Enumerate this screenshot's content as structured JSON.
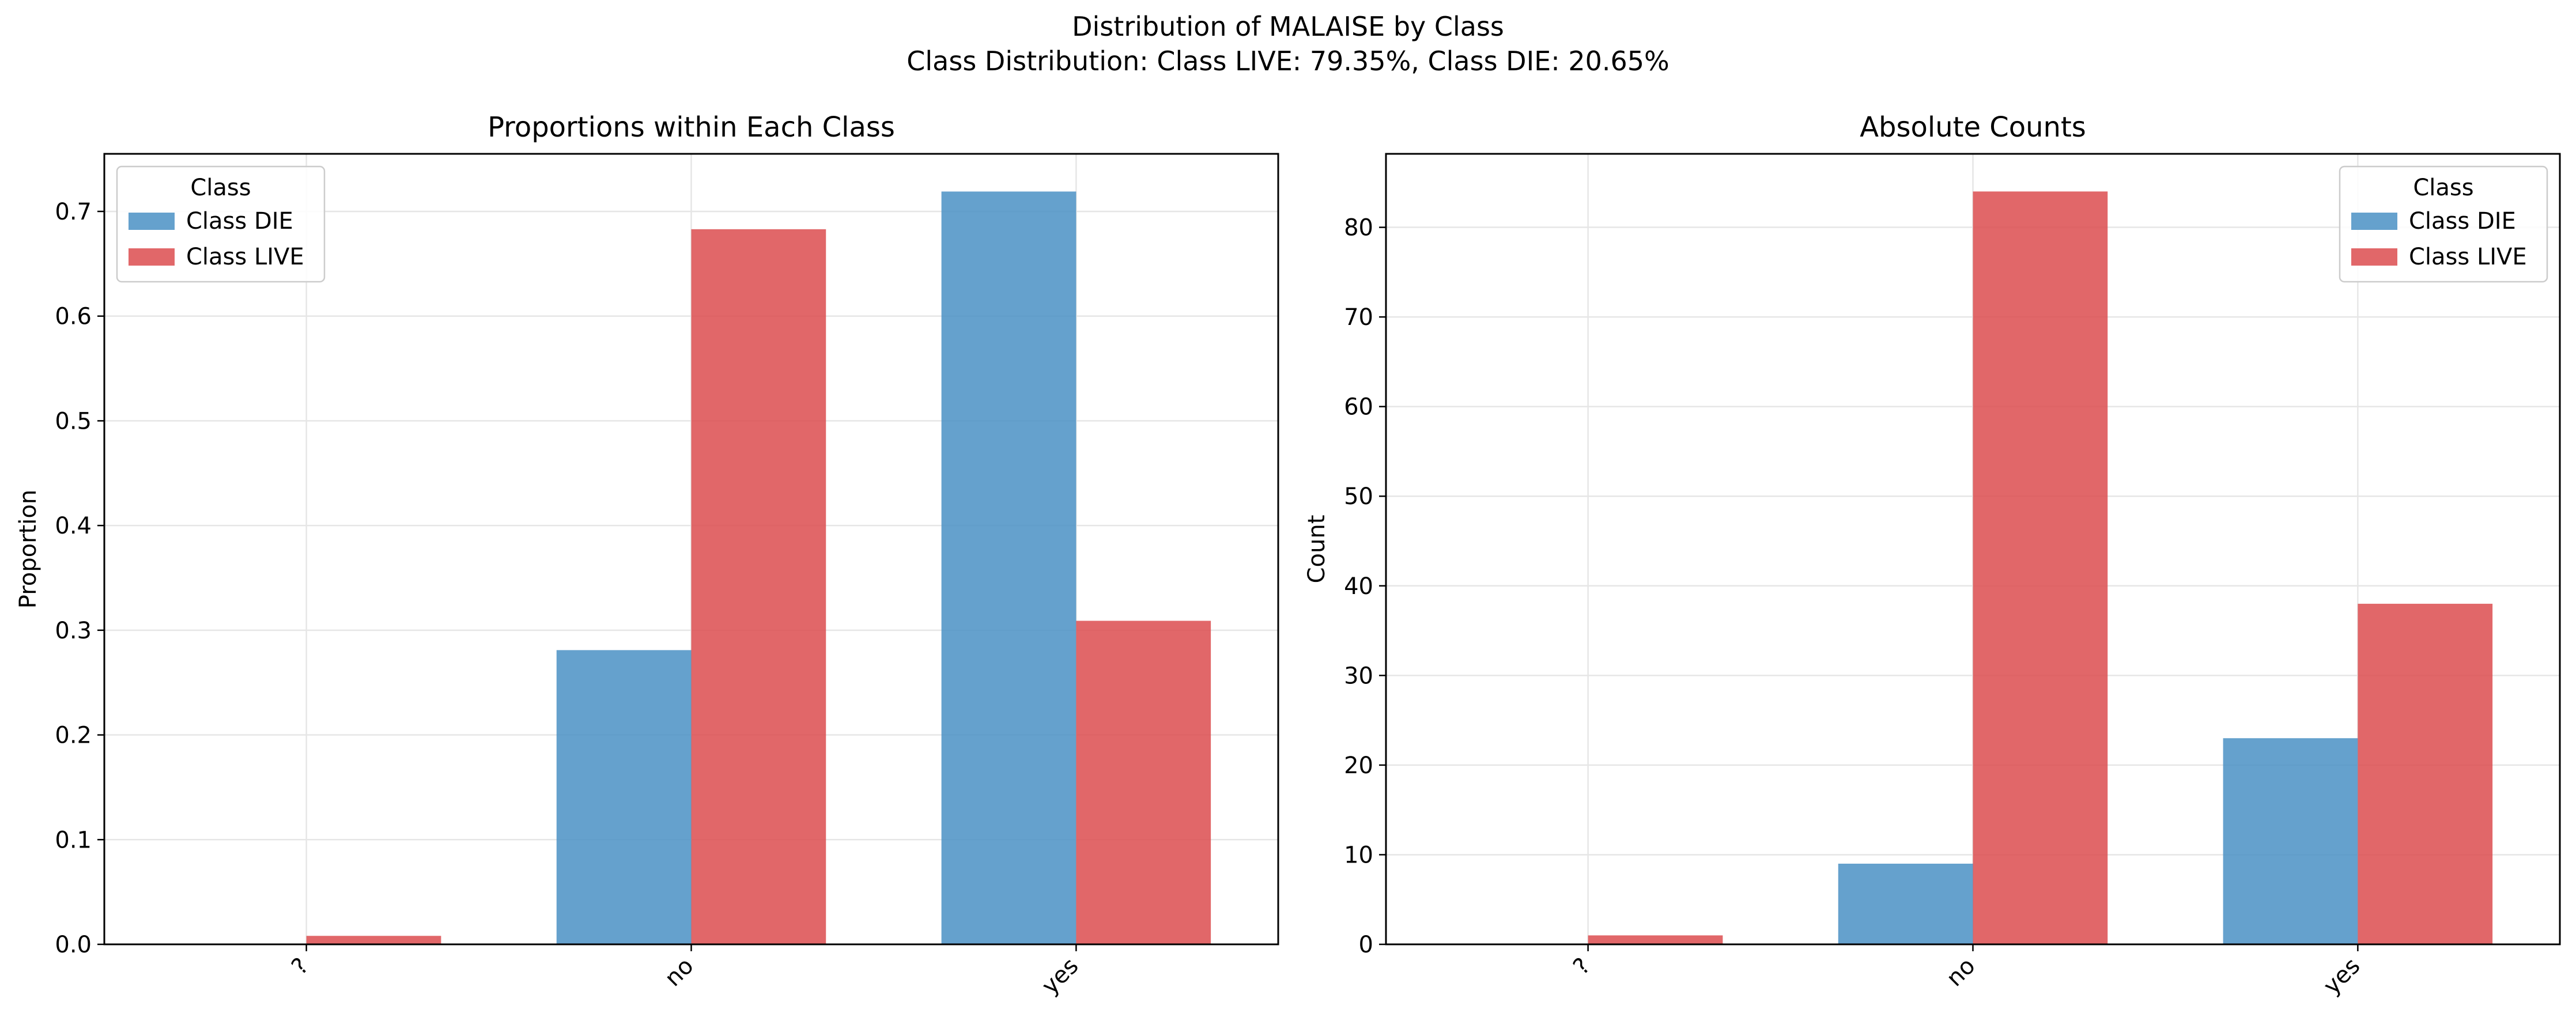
{
  "suptitle": "Distribution of MALAISE by Class",
  "subtitle": "Class Distribution: Class LIVE: 79.35%, Class DIE: 20.65%",
  "colors": {
    "die": "#4a90c4",
    "live": "#dc4c4f"
  },
  "chart_data": [
    {
      "type": "bar",
      "title": "Proportions within Each Class",
      "xlabel": "",
      "ylabel": "Proportion",
      "categories": [
        "?",
        "no",
        "yes"
      ],
      "ylim": [
        0,
        0.755
      ],
      "yticks": [
        "0.0",
        "0.1",
        "0.2",
        "0.3",
        "0.4",
        "0.5",
        "0.6",
        "0.7"
      ],
      "grid": true,
      "legend": {
        "title": "Class",
        "placement": "top-left"
      },
      "series": [
        {
          "name": "Class DIE",
          "color": "#4a90c4",
          "values": [
            0,
            0.281,
            0.719
          ]
        },
        {
          "name": "Class LIVE",
          "color": "#dc4c4f",
          "values": [
            0.0081,
            0.683,
            0.309
          ]
        }
      ]
    },
    {
      "type": "bar",
      "title": "Absolute Counts",
      "xlabel": "",
      "ylabel": "Count",
      "categories": [
        "?",
        "no",
        "yes"
      ],
      "ylim": [
        0,
        88.2
      ],
      "yticks": [
        "0",
        "10",
        "20",
        "30",
        "40",
        "50",
        "60",
        "70",
        "80"
      ],
      "grid": true,
      "legend": {
        "title": "Class",
        "placement": "top-right"
      },
      "series": [
        {
          "name": "Class DIE",
          "color": "#4a90c4",
          "values": [
            0,
            9,
            23
          ]
        },
        {
          "name": "Class LIVE",
          "color": "#dc4c4f",
          "values": [
            1,
            84,
            38
          ]
        }
      ]
    }
  ]
}
